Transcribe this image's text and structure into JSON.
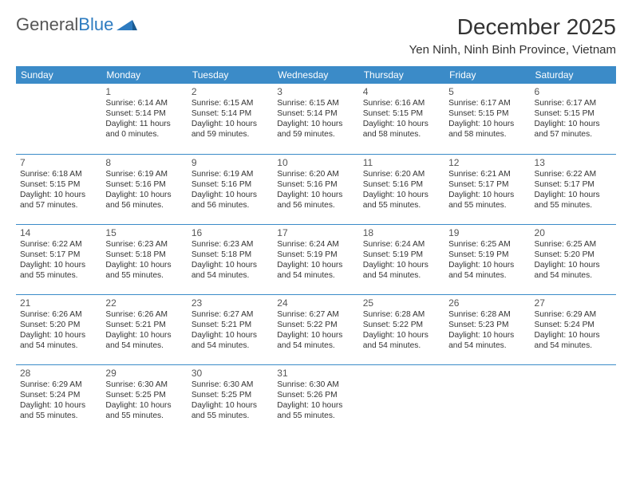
{
  "logo": {
    "text1": "General",
    "text2": "Blue"
  },
  "title": "December 2025",
  "location": "Yen Ninh, Ninh Binh Province, Vietnam",
  "colors": {
    "header_bg": "#3b8bc8",
    "header_text": "#ffffff",
    "border": "#3b8bc8",
    "logo_blue": "#2d7bc0",
    "text": "#333333",
    "background": "#ffffff"
  },
  "weekdays": [
    "Sunday",
    "Monday",
    "Tuesday",
    "Wednesday",
    "Thursday",
    "Friday",
    "Saturday"
  ],
  "weeks": [
    [
      null,
      {
        "n": "1",
        "sr": "Sunrise: 6:14 AM",
        "ss": "Sunset: 5:14 PM",
        "dl": "Daylight: 11 hours and 0 minutes."
      },
      {
        "n": "2",
        "sr": "Sunrise: 6:15 AM",
        "ss": "Sunset: 5:14 PM",
        "dl": "Daylight: 10 hours and 59 minutes."
      },
      {
        "n": "3",
        "sr": "Sunrise: 6:15 AM",
        "ss": "Sunset: 5:14 PM",
        "dl": "Daylight: 10 hours and 59 minutes."
      },
      {
        "n": "4",
        "sr": "Sunrise: 6:16 AM",
        "ss": "Sunset: 5:15 PM",
        "dl": "Daylight: 10 hours and 58 minutes."
      },
      {
        "n": "5",
        "sr": "Sunrise: 6:17 AM",
        "ss": "Sunset: 5:15 PM",
        "dl": "Daylight: 10 hours and 58 minutes."
      },
      {
        "n": "6",
        "sr": "Sunrise: 6:17 AM",
        "ss": "Sunset: 5:15 PM",
        "dl": "Daylight: 10 hours and 57 minutes."
      }
    ],
    [
      {
        "n": "7",
        "sr": "Sunrise: 6:18 AM",
        "ss": "Sunset: 5:15 PM",
        "dl": "Daylight: 10 hours and 57 minutes."
      },
      {
        "n": "8",
        "sr": "Sunrise: 6:19 AM",
        "ss": "Sunset: 5:16 PM",
        "dl": "Daylight: 10 hours and 56 minutes."
      },
      {
        "n": "9",
        "sr": "Sunrise: 6:19 AM",
        "ss": "Sunset: 5:16 PM",
        "dl": "Daylight: 10 hours and 56 minutes."
      },
      {
        "n": "10",
        "sr": "Sunrise: 6:20 AM",
        "ss": "Sunset: 5:16 PM",
        "dl": "Daylight: 10 hours and 56 minutes."
      },
      {
        "n": "11",
        "sr": "Sunrise: 6:20 AM",
        "ss": "Sunset: 5:16 PM",
        "dl": "Daylight: 10 hours and 55 minutes."
      },
      {
        "n": "12",
        "sr": "Sunrise: 6:21 AM",
        "ss": "Sunset: 5:17 PM",
        "dl": "Daylight: 10 hours and 55 minutes."
      },
      {
        "n": "13",
        "sr": "Sunrise: 6:22 AM",
        "ss": "Sunset: 5:17 PM",
        "dl": "Daylight: 10 hours and 55 minutes."
      }
    ],
    [
      {
        "n": "14",
        "sr": "Sunrise: 6:22 AM",
        "ss": "Sunset: 5:17 PM",
        "dl": "Daylight: 10 hours and 55 minutes."
      },
      {
        "n": "15",
        "sr": "Sunrise: 6:23 AM",
        "ss": "Sunset: 5:18 PM",
        "dl": "Daylight: 10 hours and 55 minutes."
      },
      {
        "n": "16",
        "sr": "Sunrise: 6:23 AM",
        "ss": "Sunset: 5:18 PM",
        "dl": "Daylight: 10 hours and 54 minutes."
      },
      {
        "n": "17",
        "sr": "Sunrise: 6:24 AM",
        "ss": "Sunset: 5:19 PM",
        "dl": "Daylight: 10 hours and 54 minutes."
      },
      {
        "n": "18",
        "sr": "Sunrise: 6:24 AM",
        "ss": "Sunset: 5:19 PM",
        "dl": "Daylight: 10 hours and 54 minutes."
      },
      {
        "n": "19",
        "sr": "Sunrise: 6:25 AM",
        "ss": "Sunset: 5:19 PM",
        "dl": "Daylight: 10 hours and 54 minutes."
      },
      {
        "n": "20",
        "sr": "Sunrise: 6:25 AM",
        "ss": "Sunset: 5:20 PM",
        "dl": "Daylight: 10 hours and 54 minutes."
      }
    ],
    [
      {
        "n": "21",
        "sr": "Sunrise: 6:26 AM",
        "ss": "Sunset: 5:20 PM",
        "dl": "Daylight: 10 hours and 54 minutes."
      },
      {
        "n": "22",
        "sr": "Sunrise: 6:26 AM",
        "ss": "Sunset: 5:21 PM",
        "dl": "Daylight: 10 hours and 54 minutes."
      },
      {
        "n": "23",
        "sr": "Sunrise: 6:27 AM",
        "ss": "Sunset: 5:21 PM",
        "dl": "Daylight: 10 hours and 54 minutes."
      },
      {
        "n": "24",
        "sr": "Sunrise: 6:27 AM",
        "ss": "Sunset: 5:22 PM",
        "dl": "Daylight: 10 hours and 54 minutes."
      },
      {
        "n": "25",
        "sr": "Sunrise: 6:28 AM",
        "ss": "Sunset: 5:22 PM",
        "dl": "Daylight: 10 hours and 54 minutes."
      },
      {
        "n": "26",
        "sr": "Sunrise: 6:28 AM",
        "ss": "Sunset: 5:23 PM",
        "dl": "Daylight: 10 hours and 54 minutes."
      },
      {
        "n": "27",
        "sr": "Sunrise: 6:29 AM",
        "ss": "Sunset: 5:24 PM",
        "dl": "Daylight: 10 hours and 54 minutes."
      }
    ],
    [
      {
        "n": "28",
        "sr": "Sunrise: 6:29 AM",
        "ss": "Sunset: 5:24 PM",
        "dl": "Daylight: 10 hours and 55 minutes."
      },
      {
        "n": "29",
        "sr": "Sunrise: 6:30 AM",
        "ss": "Sunset: 5:25 PM",
        "dl": "Daylight: 10 hours and 55 minutes."
      },
      {
        "n": "30",
        "sr": "Sunrise: 6:30 AM",
        "ss": "Sunset: 5:25 PM",
        "dl": "Daylight: 10 hours and 55 minutes."
      },
      {
        "n": "31",
        "sr": "Sunrise: 6:30 AM",
        "ss": "Sunset: 5:26 PM",
        "dl": "Daylight: 10 hours and 55 minutes."
      },
      null,
      null,
      null
    ]
  ]
}
